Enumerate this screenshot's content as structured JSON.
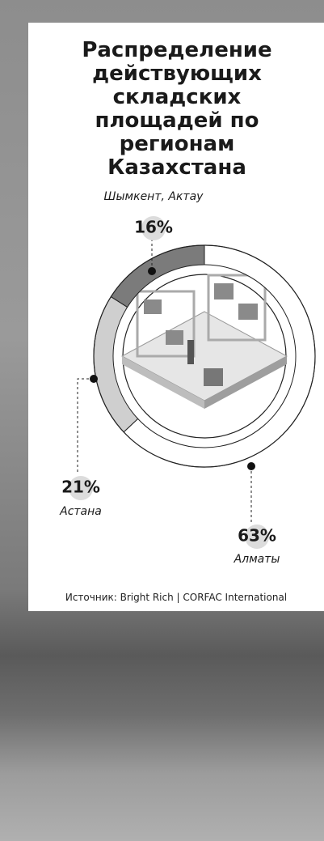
{
  "chart_data": {
    "type": "donut",
    "title": "Распределение действующих складских площадей по регионам Казахстана",
    "categories": [
      "Алматы",
      "Астана",
      "Шымкент, Актау"
    ],
    "values": [
      63,
      21,
      16
    ],
    "value_labels": [
      "63%",
      "21%",
      "16%"
    ],
    "colors": [
      "#ffffff",
      "#cfcfcf",
      "#7b7b7b"
    ],
    "source": "Источник: Bright Rich | CORFAC International"
  }
}
